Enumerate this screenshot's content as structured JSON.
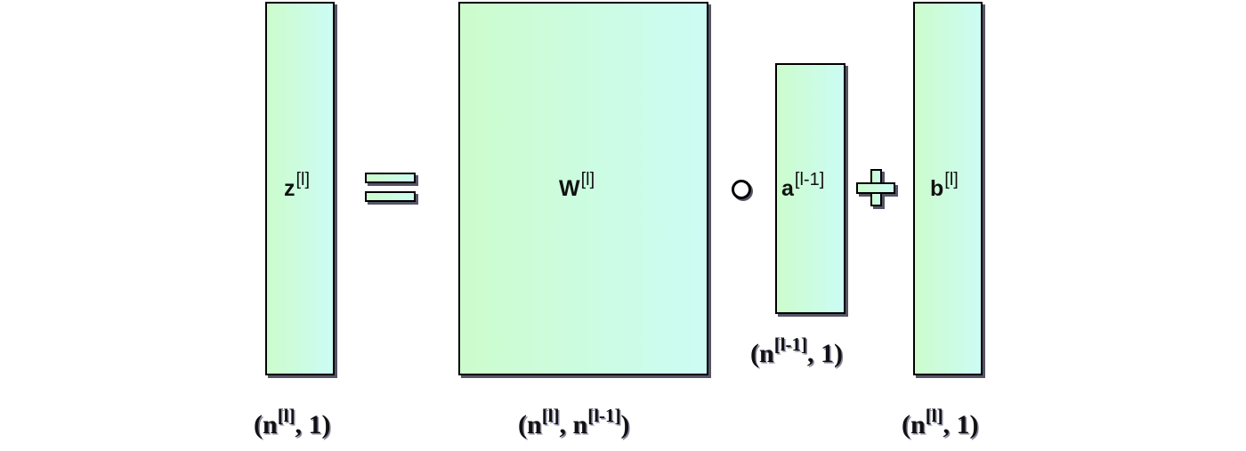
{
  "blocks": {
    "z": {
      "symbol": "z",
      "sup": "[l]",
      "dim_base": "(n",
      "dim_sup": "[l]",
      "dim_tail": ", 1)"
    },
    "W": {
      "symbol": "W",
      "sup": "[l]",
      "dim_base": "(n",
      "dim_sup": "[l]",
      "dim_mid": ", n",
      "dim_sup2": "[l-1]",
      "dim_tail": ")"
    },
    "a": {
      "symbol": "a",
      "sup": "[l-1]",
      "dim_base": "(n",
      "dim_sup": "[l-1]",
      "dim_tail": ", 1)"
    },
    "b": {
      "symbol": "b",
      "sup": "[l]",
      "dim_base": "(n",
      "dim_sup": "[l]",
      "dim_tail": ", 1)"
    }
  },
  "operators": [
    "equals-icon",
    "circle-product-icon",
    "plus-icon"
  ],
  "colors": {
    "fill_left": "#ccfccc",
    "fill_right": "#ccfcf4",
    "outline": "#000000",
    "shadow": "#555566"
  }
}
